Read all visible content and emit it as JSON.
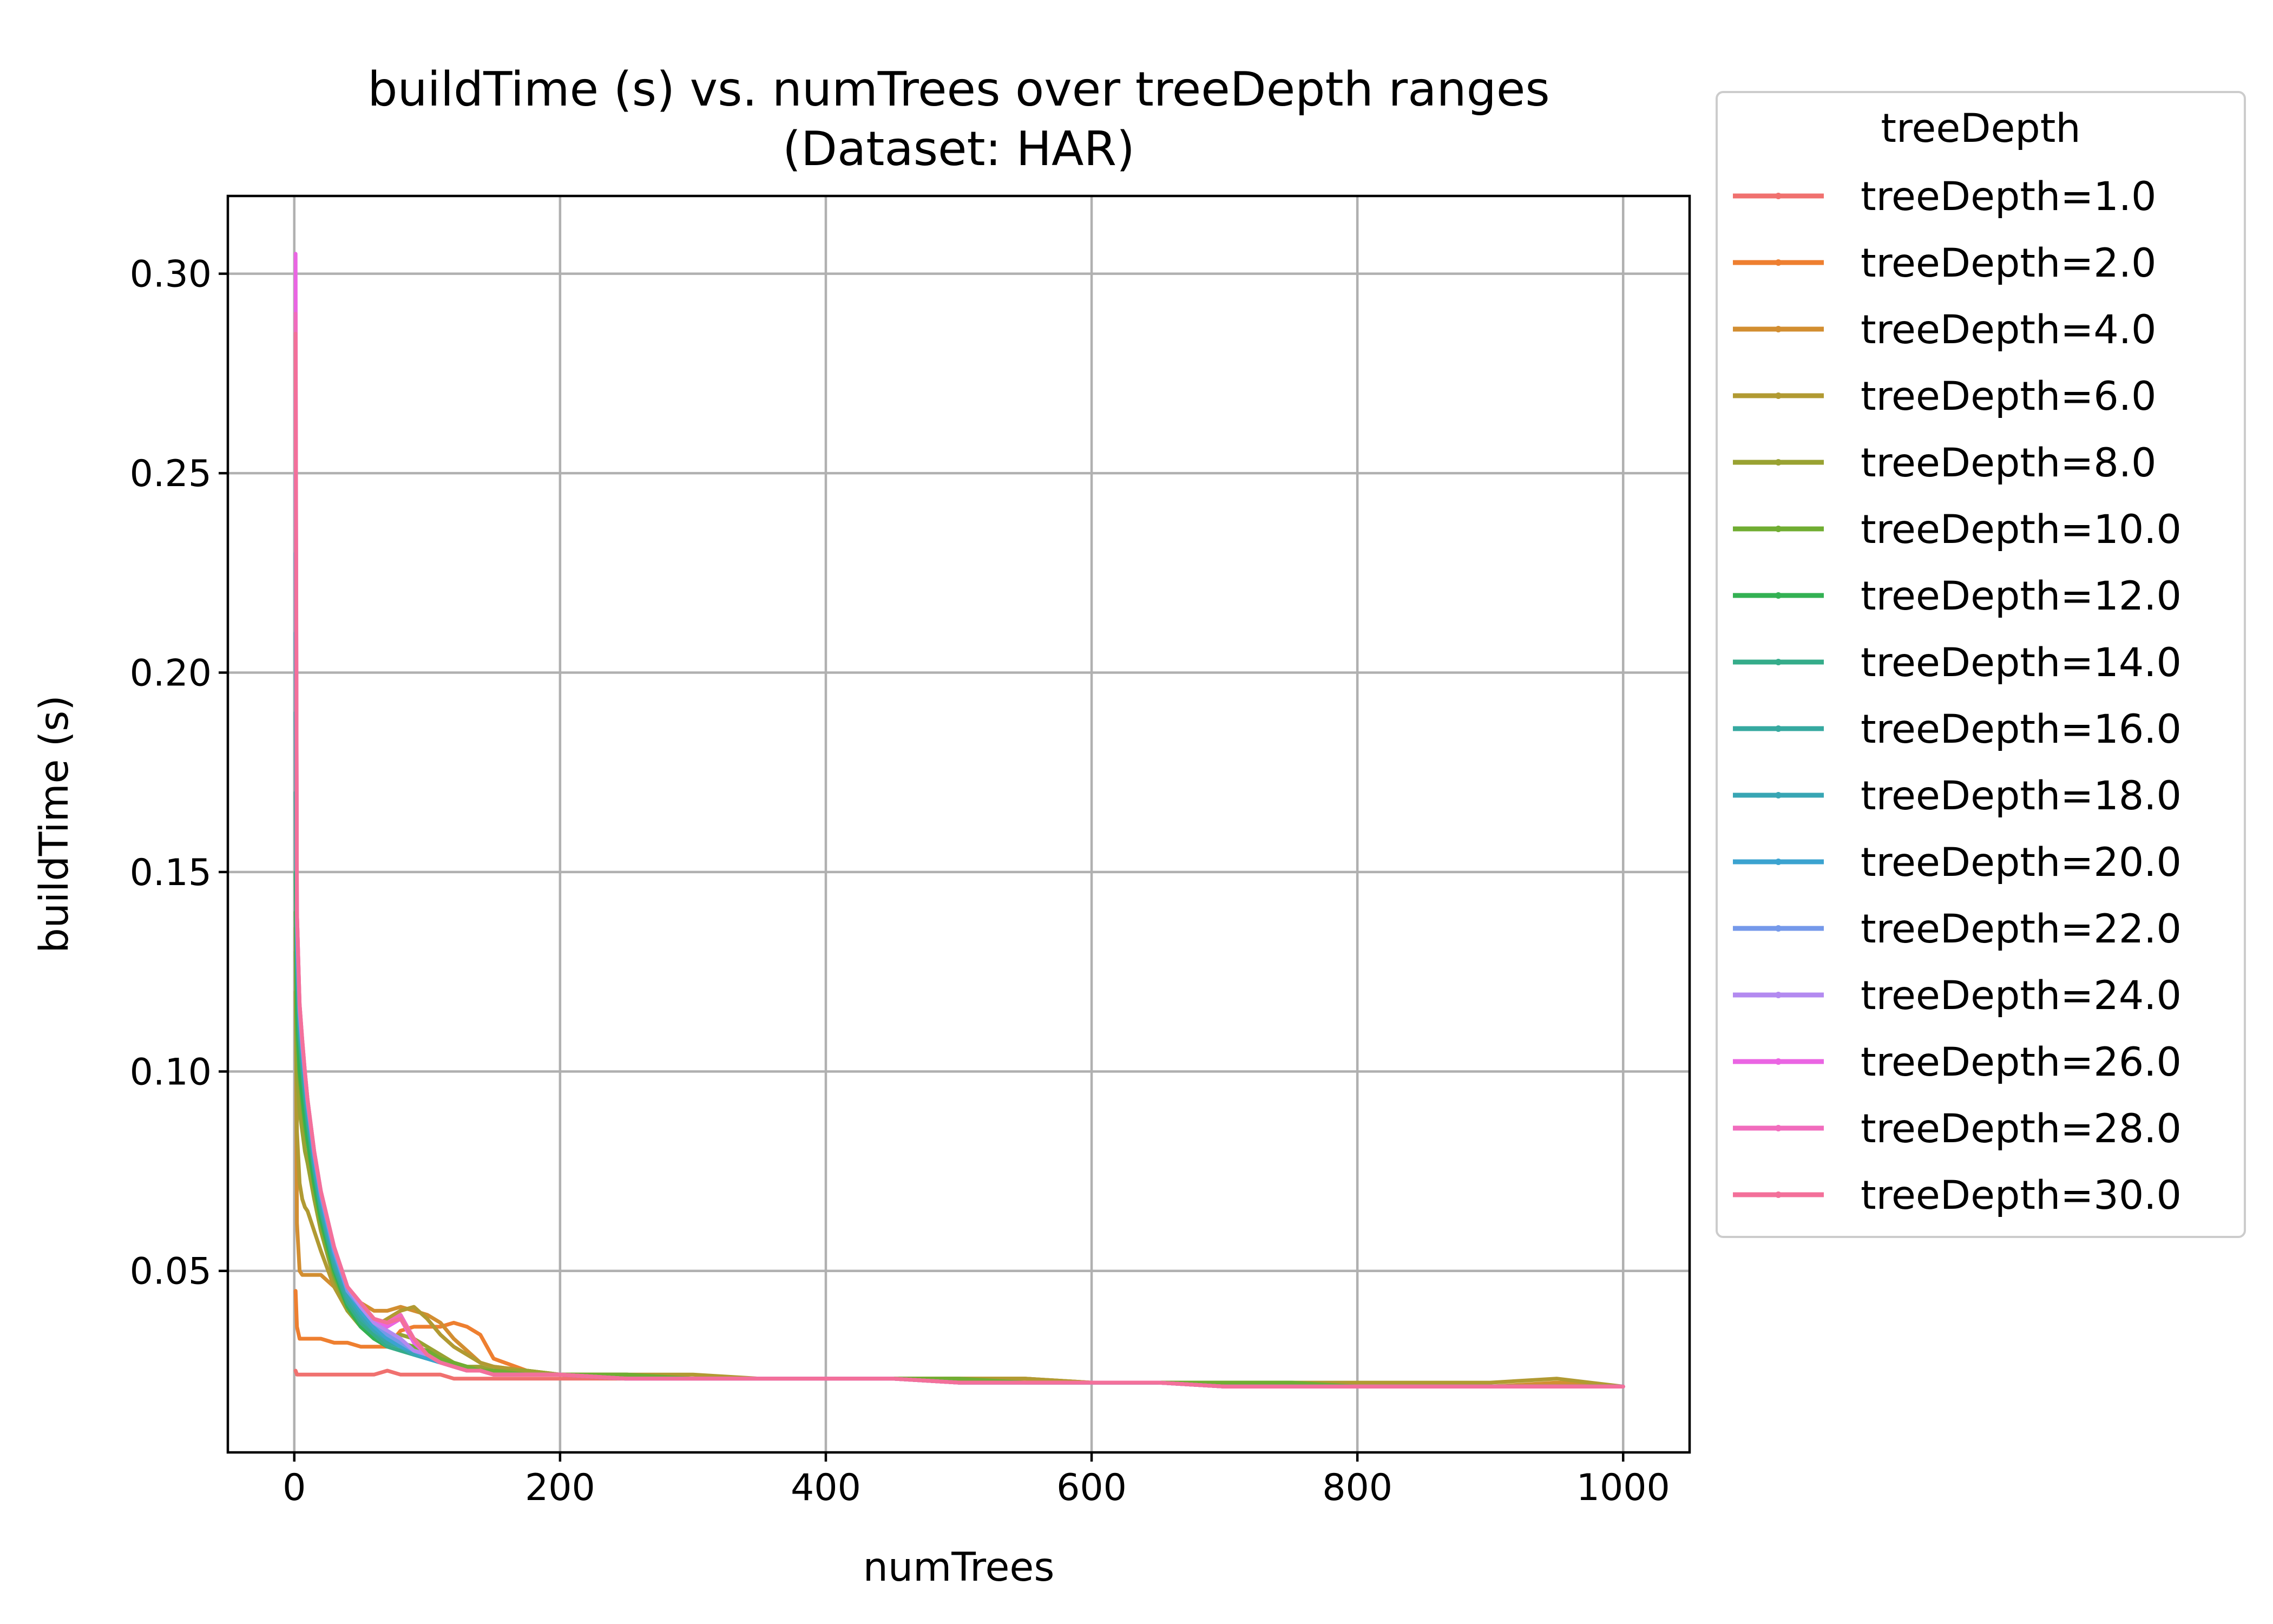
{
  "colors": {
    "grid": "#b0b0b0",
    "axis": "#000000",
    "legend_border": "#cccccc"
  },
  "chart_data": {
    "type": "line",
    "title": [
      "buildTime (s) vs. numTrees over treeDepth ranges",
      "(Dataset: HAR)"
    ],
    "xlabel": "numTrees",
    "ylabel": "buildTime (s)",
    "xlim": [
      -50,
      1050
    ],
    "ylim": [
      0.0045,
      0.3195
    ],
    "xticks": [
      0,
      200,
      400,
      600,
      800,
      1000
    ],
    "xtick_labels": [
      "0",
      "200",
      "400",
      "600",
      "800",
      "1000"
    ],
    "yticks": [
      0.05,
      0.1,
      0.15,
      0.2,
      0.25,
      0.3
    ],
    "ytick_labels": [
      "0.05",
      "0.10",
      "0.15",
      "0.20",
      "0.25",
      "0.30"
    ],
    "grid": true,
    "legend": {
      "title": "treeDepth",
      "placement": "outside-right"
    },
    "x": [
      1,
      2,
      4,
      6,
      8,
      10,
      15,
      20,
      30,
      40,
      50,
      60,
      70,
      80,
      90,
      100,
      110,
      120,
      130,
      140,
      150,
      175,
      200,
      250,
      300,
      350,
      400,
      450,
      500,
      550,
      600,
      650,
      700,
      750,
      800,
      850,
      900,
      950,
      1000
    ],
    "series": [
      {
        "name": "treeDepth=1.0",
        "color": "#f0716f",
        "values": [
          0.025,
          0.024,
          0.024,
          0.024,
          0.024,
          0.024,
          0.024,
          0.024,
          0.024,
          0.024,
          0.024,
          0.024,
          0.025,
          0.024,
          0.024,
          0.024,
          0.024,
          0.023,
          0.023,
          0.023,
          0.023,
          0.023,
          0.023,
          0.023,
          0.023,
          0.023,
          0.023,
          0.023,
          0.022,
          0.022,
          0.022,
          0.022,
          0.021,
          0.021,
          0.021,
          0.021,
          0.021,
          0.021,
          0.021
        ]
      },
      {
        "name": "treeDepth=2.0",
        "color": "#ee7f30",
        "values": [
          0.045,
          0.036,
          0.033,
          0.033,
          0.033,
          0.033,
          0.033,
          0.033,
          0.032,
          0.032,
          0.031,
          0.031,
          0.031,
          0.035,
          0.036,
          0.036,
          0.036,
          0.037,
          0.036,
          0.034,
          0.028,
          0.025,
          0.024,
          0.024,
          0.023,
          0.023,
          0.023,
          0.023,
          0.023,
          0.023,
          0.022,
          0.022,
          0.022,
          0.022,
          0.021,
          0.021,
          0.021,
          0.021,
          0.021
        ]
      },
      {
        "name": "treeDepth=4.0",
        "color": "#d28e31",
        "values": [
          0.136,
          0.062,
          0.05,
          0.049,
          0.049,
          0.049,
          0.049,
          0.049,
          0.046,
          0.044,
          0.042,
          0.04,
          0.04,
          0.041,
          0.04,
          0.039,
          0.037,
          0.033,
          0.03,
          0.027,
          0.026,
          0.025,
          0.024,
          0.024,
          0.023,
          0.023,
          0.023,
          0.023,
          0.023,
          0.023,
          0.022,
          0.022,
          0.022,
          0.022,
          0.021,
          0.021,
          0.021,
          0.022,
          0.021
        ]
      },
      {
        "name": "treeDepth=6.0",
        "color": "#b19a32",
        "values": [
          0.12,
          0.085,
          0.072,
          0.068,
          0.066,
          0.065,
          0.06,
          0.055,
          0.046,
          0.04,
          0.037,
          0.036,
          0.038,
          0.04,
          0.041,
          0.038,
          0.034,
          0.031,
          0.029,
          0.027,
          0.026,
          0.025,
          0.024,
          0.024,
          0.024,
          0.023,
          0.023,
          0.023,
          0.023,
          0.023,
          0.022,
          0.022,
          0.022,
          0.022,
          0.022,
          0.022,
          0.022,
          0.023,
          0.021
        ]
      },
      {
        "name": "treeDepth=8.0",
        "color": "#99a232",
        "values": [
          0.13,
          0.1,
          0.09,
          0.085,
          0.08,
          0.077,
          0.068,
          0.06,
          0.048,
          0.04,
          0.036,
          0.034,
          0.033,
          0.034,
          0.033,
          0.031,
          0.029,
          0.027,
          0.026,
          0.026,
          0.025,
          0.025,
          0.024,
          0.024,
          0.023,
          0.023,
          0.023,
          0.023,
          0.023,
          0.022,
          0.022,
          0.022,
          0.022,
          0.022,
          0.021,
          0.021,
          0.021,
          0.021,
          0.021
        ]
      },
      {
        "name": "treeDepth=10.0",
        "color": "#70ad32",
        "values": [
          0.14,
          0.11,
          0.098,
          0.092,
          0.086,
          0.082,
          0.071,
          0.062,
          0.049,
          0.041,
          0.036,
          0.033,
          0.032,
          0.032,
          0.031,
          0.03,
          0.028,
          0.027,
          0.026,
          0.025,
          0.025,
          0.024,
          0.024,
          0.024,
          0.023,
          0.023,
          0.023,
          0.023,
          0.023,
          0.022,
          0.022,
          0.022,
          0.022,
          0.022,
          0.021,
          0.021,
          0.021,
          0.021,
          0.021
        ]
      },
      {
        "name": "treeDepth=12.0",
        "color": "#33b153",
        "values": [
          0.15,
          0.115,
          0.1,
          0.094,
          0.088,
          0.083,
          0.072,
          0.063,
          0.05,
          0.041,
          0.036,
          0.033,
          0.031,
          0.03,
          0.029,
          0.028,
          0.027,
          0.026,
          0.025,
          0.025,
          0.024,
          0.024,
          0.024,
          0.023,
          0.023,
          0.023,
          0.023,
          0.023,
          0.022,
          0.022,
          0.022,
          0.022,
          0.021,
          0.021,
          0.021,
          0.021,
          0.021,
          0.021,
          0.021
        ]
      },
      {
        "name": "treeDepth=14.0",
        "color": "#35ac8a",
        "values": [
          0.17,
          0.125,
          0.108,
          0.1,
          0.093,
          0.087,
          0.075,
          0.065,
          0.051,
          0.042,
          0.037,
          0.034,
          0.031,
          0.03,
          0.029,
          0.028,
          0.027,
          0.026,
          0.025,
          0.025,
          0.024,
          0.024,
          0.024,
          0.023,
          0.023,
          0.023,
          0.023,
          0.023,
          0.022,
          0.022,
          0.022,
          0.022,
          0.021,
          0.021,
          0.021,
          0.021,
          0.021,
          0.021,
          0.021
        ]
      },
      {
        "name": "treeDepth=16.0",
        "color": "#36a9a0",
        "values": [
          0.19,
          0.13,
          0.11,
          0.102,
          0.095,
          0.089,
          0.076,
          0.066,
          0.052,
          0.043,
          0.038,
          0.035,
          0.032,
          0.031,
          0.029,
          0.028,
          0.027,
          0.026,
          0.025,
          0.025,
          0.024,
          0.024,
          0.024,
          0.023,
          0.023,
          0.023,
          0.023,
          0.023,
          0.022,
          0.022,
          0.022,
          0.022,
          0.021,
          0.021,
          0.021,
          0.021,
          0.021,
          0.021,
          0.021
        ]
      },
      {
        "name": "treeDepth=18.0",
        "color": "#38a6b4",
        "values": [
          0.21,
          0.13,
          0.112,
          0.104,
          0.097,
          0.09,
          0.077,
          0.067,
          0.053,
          0.044,
          0.039,
          0.035,
          0.033,
          0.031,
          0.029,
          0.028,
          0.027,
          0.026,
          0.025,
          0.025,
          0.024,
          0.024,
          0.024,
          0.023,
          0.023,
          0.023,
          0.023,
          0.023,
          0.022,
          0.022,
          0.022,
          0.022,
          0.021,
          0.021,
          0.021,
          0.021,
          0.021,
          0.021,
          0.021
        ]
      },
      {
        "name": "treeDepth=20.0",
        "color": "#3ba3d0",
        "values": [
          0.23,
          0.135,
          0.114,
          0.105,
          0.098,
          0.091,
          0.078,
          0.068,
          0.054,
          0.045,
          0.04,
          0.036,
          0.033,
          0.031,
          0.03,
          0.028,
          0.027,
          0.026,
          0.025,
          0.025,
          0.024,
          0.024,
          0.024,
          0.023,
          0.023,
          0.023,
          0.023,
          0.023,
          0.022,
          0.022,
          0.022,
          0.022,
          0.021,
          0.021,
          0.021,
          0.021,
          0.021,
          0.021,
          0.021
        ]
      },
      {
        "name": "treeDepth=22.0",
        "color": "#7599ea",
        "values": [
          0.25,
          0.137,
          0.115,
          0.106,
          0.099,
          0.092,
          0.079,
          0.069,
          0.055,
          0.045,
          0.041,
          0.037,
          0.034,
          0.032,
          0.03,
          0.029,
          0.027,
          0.026,
          0.025,
          0.025,
          0.024,
          0.024,
          0.024,
          0.023,
          0.023,
          0.023,
          0.023,
          0.023,
          0.022,
          0.022,
          0.022,
          0.022,
          0.021,
          0.021,
          0.021,
          0.021,
          0.021,
          0.021,
          0.021
        ]
      },
      {
        "name": "treeDepth=24.0",
        "color": "#b38af0",
        "values": [
          0.27,
          0.138,
          0.116,
          0.107,
          0.1,
          0.093,
          0.08,
          0.07,
          0.056,
          0.046,
          0.041,
          0.037,
          0.035,
          0.033,
          0.03,
          0.029,
          0.027,
          0.026,
          0.025,
          0.025,
          0.024,
          0.024,
          0.024,
          0.023,
          0.023,
          0.023,
          0.023,
          0.023,
          0.022,
          0.022,
          0.022,
          0.022,
          0.021,
          0.021,
          0.021,
          0.021,
          0.021,
          0.021,
          0.021
        ]
      },
      {
        "name": "treeDepth=26.0",
        "color": "#ea65e3",
        "values": [
          0.305,
          0.14,
          0.117,
          0.108,
          0.1,
          0.093,
          0.08,
          0.07,
          0.056,
          0.046,
          0.042,
          0.038,
          0.036,
          0.038,
          0.032,
          0.029,
          0.027,
          0.026,
          0.025,
          0.025,
          0.024,
          0.024,
          0.024,
          0.023,
          0.023,
          0.023,
          0.023,
          0.023,
          0.022,
          0.022,
          0.022,
          0.022,
          0.021,
          0.021,
          0.021,
          0.021,
          0.021,
          0.021,
          0.021
        ]
      },
      {
        "name": "treeDepth=28.0",
        "color": "#f16cbd",
        "values": [
          0.29,
          0.14,
          0.117,
          0.108,
          0.1,
          0.093,
          0.08,
          0.07,
          0.056,
          0.046,
          0.042,
          0.038,
          0.037,
          0.039,
          0.033,
          0.029,
          0.027,
          0.026,
          0.025,
          0.025,
          0.024,
          0.024,
          0.024,
          0.023,
          0.023,
          0.023,
          0.023,
          0.023,
          0.022,
          0.022,
          0.022,
          0.022,
          0.021,
          0.021,
          0.021,
          0.021,
          0.021,
          0.021,
          0.021
        ]
      },
      {
        "name": "treeDepth=30.0",
        "color": "#f3709a",
        "values": [
          0.285,
          0.14,
          0.117,
          0.108,
          0.1,
          0.093,
          0.08,
          0.07,
          0.056,
          0.046,
          0.042,
          0.038,
          0.037,
          0.038,
          0.033,
          0.029,
          0.027,
          0.026,
          0.025,
          0.025,
          0.024,
          0.024,
          0.024,
          0.023,
          0.023,
          0.023,
          0.023,
          0.023,
          0.022,
          0.022,
          0.022,
          0.022,
          0.021,
          0.021,
          0.021,
          0.021,
          0.021,
          0.021,
          0.021
        ]
      }
    ]
  }
}
